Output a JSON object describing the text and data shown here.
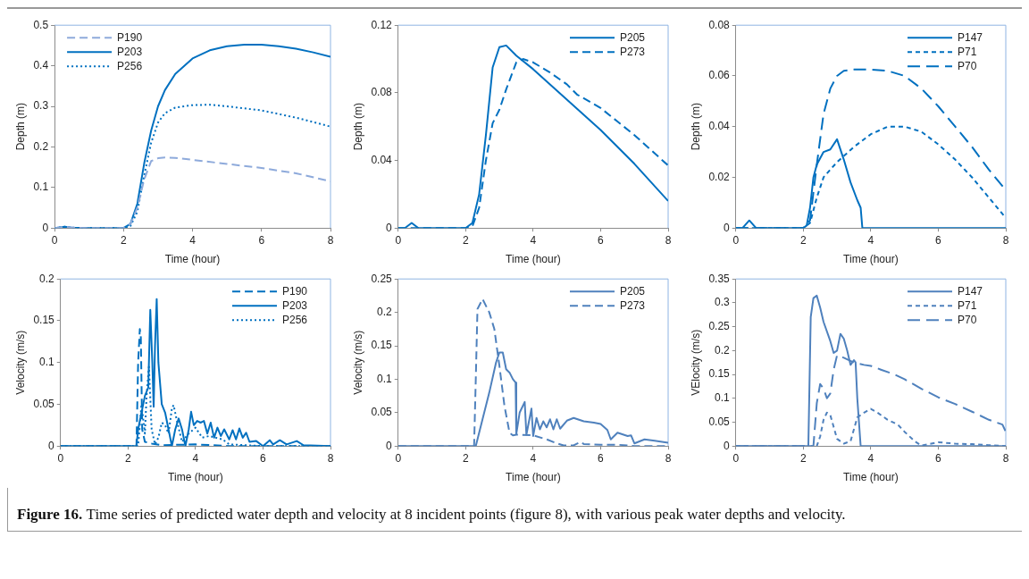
{
  "chart_data": [
    {
      "type": "line",
      "xlabel": "Time (hour)",
      "ylabel": "Depth (m)",
      "xlim": [
        0,
        8
      ],
      "xticks": [
        0,
        2,
        4,
        6,
        8
      ],
      "ylim": [
        0,
        0.5
      ],
      "yticks": [
        0,
        0.1,
        0.2,
        0.3,
        0.4,
        0.5
      ],
      "legend": "top left",
      "series": [
        {
          "name": "P190",
          "color": "#8eaadb",
          "line_style": "dashed",
          "x": [
            0,
            0.3,
            0.5,
            1,
            2,
            2.2,
            2.4,
            2.6,
            2.8,
            3,
            3.2,
            3.5,
            4,
            5,
            6,
            7,
            8
          ],
          "values": [
            0,
            0.003,
            0.001,
            0,
            0,
            0.01,
            0.05,
            0.12,
            0.165,
            0.172,
            0.174,
            0.173,
            0.168,
            0.158,
            0.148,
            0.135,
            0.115
          ]
        },
        {
          "name": "P203",
          "color": "#0070c0",
          "line_style": "solid",
          "x": [
            0,
            0.3,
            0.5,
            1,
            2,
            2.2,
            2.4,
            2.6,
            2.8,
            3,
            3.2,
            3.5,
            4,
            4.5,
            5,
            5.5,
            6,
            6.5,
            7,
            7.5,
            8
          ],
          "values": [
            0,
            0.003,
            0.001,
            0,
            0,
            0.01,
            0.06,
            0.16,
            0.24,
            0.3,
            0.34,
            0.38,
            0.418,
            0.438,
            0.448,
            0.452,
            0.452,
            0.448,
            0.442,
            0.433,
            0.422
          ]
        },
        {
          "name": "P256",
          "color": "#0070c0",
          "line_style": "dotted",
          "x": [
            0,
            0.3,
            0.5,
            1,
            2,
            2.2,
            2.4,
            2.6,
            2.8,
            3,
            3.2,
            3.5,
            4,
            4.5,
            5,
            6,
            7,
            8
          ],
          "values": [
            0,
            0.003,
            0.001,
            0,
            0,
            0.005,
            0.04,
            0.13,
            0.21,
            0.26,
            0.283,
            0.297,
            0.303,
            0.304,
            0.3,
            0.29,
            0.272,
            0.25
          ]
        }
      ]
    },
    {
      "type": "line",
      "xlabel": "Time (hour)",
      "ylabel": "Depth (m)",
      "xlim": [
        0,
        8
      ],
      "xticks": [
        0,
        2,
        4,
        6,
        8
      ],
      "ylim": [
        0,
        0.12
      ],
      "yticks": [
        0,
        0.04,
        0.08,
        0.12
      ],
      "legend": "top right",
      "series": [
        {
          "name": "P205",
          "color": "#0070c0",
          "line_style": "solid",
          "x": [
            0,
            0.2,
            0.4,
            0.6,
            1,
            2,
            2.2,
            2.4,
            2.6,
            2.8,
            3,
            3.2,
            3.5,
            4,
            4.5,
            5,
            5.5,
            6,
            7,
            8
          ],
          "values": [
            0,
            0,
            0.003,
            0,
            0,
            0,
            0.003,
            0.02,
            0.055,
            0.095,
            0.107,
            0.108,
            0.102,
            0.094,
            0.085,
            0.076,
            0.067,
            0.058,
            0.038,
            0.016
          ]
        },
        {
          "name": "P273",
          "color": "#0070c0",
          "line_style": "dashed",
          "x": [
            0,
            2,
            2.2,
            2.4,
            2.6,
            2.8,
            3,
            3.2,
            3.5,
            3.7,
            4,
            4.5,
            5,
            5.3,
            6,
            6.5,
            7,
            7.5,
            8
          ],
          "values": [
            0,
            0,
            0.001,
            0.012,
            0.04,
            0.062,
            0.07,
            0.082,
            0.098,
            0.1,
            0.098,
            0.092,
            0.085,
            0.079,
            0.071,
            0.063,
            0.055,
            0.046,
            0.037
          ]
        }
      ]
    },
    {
      "type": "line",
      "xlabel": "Time (hour)",
      "ylabel": "Depth (m)",
      "xlim": [
        0,
        8
      ],
      "xticks": [
        0,
        2,
        4,
        6,
        8
      ],
      "ylim": [
        0,
        0.08
      ],
      "yticks": [
        0,
        0.02,
        0.04,
        0.06,
        0.08
      ],
      "legend": "top right",
      "series": [
        {
          "name": "P147",
          "color": "#0070c0",
          "line_style": "solid",
          "x": [
            0,
            0.2,
            0.4,
            0.6,
            1,
            2,
            2.1,
            2.2,
            2.3,
            2.4,
            2.6,
            2.8,
            3,
            3.2,
            3.4,
            3.6,
            3.7,
            3.75,
            4,
            8
          ],
          "values": [
            0,
            0,
            0.003,
            0,
            0,
            0,
            0.001,
            0.008,
            0.02,
            0.025,
            0.03,
            0.031,
            0.035,
            0.027,
            0.018,
            0.011,
            0.008,
            0,
            0,
            0
          ]
        },
        {
          "name": "P71",
          "color": "#0070c0",
          "line_style": "dashed",
          "x": [
            0,
            2,
            2.2,
            2.4,
            2.6,
            2.8,
            3,
            3.5,
            4,
            4.5,
            5,
            5.5,
            6,
            6.5,
            7,
            7.5,
            8
          ],
          "values": [
            0,
            0,
            0.002,
            0.012,
            0.02,
            0.023,
            0.026,
            0.032,
            0.037,
            0.04,
            0.04,
            0.038,
            0.033,
            0.027,
            0.02,
            0.012,
            0.004
          ]
        },
        {
          "name": "P70",
          "color": "#0070c0",
          "line_style": "dashed",
          "x": [
            0,
            2,
            2.2,
            2.4,
            2.6,
            2.8,
            3,
            3.2,
            3.5,
            4,
            4.5,
            5,
            5.5,
            6,
            6.5,
            7,
            7.5,
            8
          ],
          "values": [
            0,
            0,
            0.003,
            0.025,
            0.045,
            0.055,
            0.06,
            0.062,
            0.0625,
            0.0625,
            0.062,
            0.06,
            0.055,
            0.048,
            0.04,
            0.032,
            0.023,
            0.015
          ]
        }
      ]
    },
    {
      "type": "line",
      "xlabel": "Time (hour)",
      "ylabel": "Velocity (m/s)",
      "xlim": [
        0,
        8
      ],
      "xticks": [
        0,
        2,
        4,
        6,
        8
      ],
      "ylim": [
        0,
        0.2
      ],
      "yticks": [
        0,
        0.05,
        0.1,
        0.15,
        0.2
      ],
      "legend": "top right",
      "series": [
        {
          "name": "P190",
          "color": "#0070c0",
          "line_style": "dashed",
          "x": [
            0,
            2.25,
            2.3,
            2.35,
            2.38,
            2.42,
            2.5,
            2.7,
            3,
            4,
            5,
            8
          ],
          "values": [
            0,
            0,
            0.1,
            0.14,
            0.13,
            0.02,
            0.005,
            0.003,
            0.001,
            0.002,
            0,
            0
          ]
        },
        {
          "name": "P203",
          "color": "#0070c0",
          "line_style": "solid",
          "x": [
            0,
            2.25,
            2.3,
            2.4,
            2.5,
            2.6,
            2.66,
            2.72,
            2.76,
            2.8,
            2.85,
            2.9,
            3,
            3.1,
            3.2,
            3.3,
            3.4,
            3.5,
            3.6,
            3.7,
            3.8,
            3.87,
            3.95,
            4.05,
            4.15,
            4.25,
            4.35,
            4.45,
            4.55,
            4.65,
            4.75,
            4.85,
            5,
            5.1,
            5.2,
            5.3,
            5.4,
            5.5,
            5.6,
            5.8,
            6,
            6.2,
            6.3,
            6.5,
            6.7,
            7,
            7.2,
            8
          ],
          "values": [
            0,
            0,
            0.02,
            0.04,
            0.06,
            0.07,
            0.163,
            0.1,
            0.047,
            0.12,
            0.176,
            0.1,
            0.05,
            0.04,
            0.02,
            0,
            0.02,
            0.033,
            0.02,
            0,
            0.02,
            0.041,
            0.025,
            0.03,
            0.028,
            0.03,
            0.015,
            0.028,
            0.01,
            0.022,
            0.012,
            0.02,
            0.008,
            0.019,
            0.008,
            0.021,
            0.01,
            0.016,
            0.005,
            0.006,
            0,
            0.007,
            0.002,
            0.007,
            0.002,
            0.006,
            0.001,
            0
          ]
        },
        {
          "name": "P256",
          "color": "#0070c0",
          "line_style": "dotted",
          "x": [
            0,
            2.3,
            2.4,
            2.5,
            2.55,
            2.62,
            2.7,
            2.8,
            2.9,
            3,
            3.1,
            3.2,
            3.3,
            3.35,
            3.45,
            3.6,
            3.8,
            4,
            4.2,
            4.4,
            4.6,
            4.8,
            5,
            5.5,
            6,
            8
          ],
          "values": [
            0,
            0,
            0.05,
            0.015,
            0.06,
            0.095,
            0.02,
            0.002,
            0.01,
            0.028,
            0.025,
            0.015,
            0.045,
            0.049,
            0.03,
            0.005,
            0.015,
            0.022,
            0.01,
            0.012,
            0.01,
            0.008,
            0.002,
            0.001,
            0,
            0
          ]
        }
      ]
    },
    {
      "type": "line",
      "xlabel": "Time (hour)",
      "ylabel": "Velocity (m/s)",
      "xlim": [
        0,
        8
      ],
      "xticks": [
        0,
        2,
        4,
        6,
        8
      ],
      "ylim": [
        0,
        0.25
      ],
      "yticks": [
        0,
        0.05,
        0.1,
        0.15,
        0.2,
        0.25
      ],
      "legend": "top right",
      "series": [
        {
          "name": "P205",
          "color": "#4f81bd",
          "line_style": "solid",
          "x": [
            0,
            2.3,
            2.5,
            2.7,
            2.9,
            3,
            3.1,
            3.2,
            3.3,
            3.4,
            3.48,
            3.5,
            3.6,
            3.75,
            3.8,
            3.95,
            4,
            4.1,
            4.2,
            4.3,
            4.4,
            4.5,
            4.6,
            4.7,
            4.8,
            5,
            5.2,
            5.5,
            5.8,
            6,
            6.2,
            6.3,
            6.5,
            6.8,
            6.9,
            7,
            7.3,
            7.6,
            8
          ],
          "values": [
            0,
            0,
            0.04,
            0.08,
            0.125,
            0.14,
            0.14,
            0.115,
            0.11,
            0.1,
            0.095,
            0.018,
            0.05,
            0.066,
            0.017,
            0.056,
            0.015,
            0.042,
            0.025,
            0.037,
            0.028,
            0.04,
            0.025,
            0.04,
            0.026,
            0.038,
            0.042,
            0.037,
            0.035,
            0.033,
            0.024,
            0.01,
            0.02,
            0.015,
            0.016,
            0.004,
            0.01,
            0.008,
            0.005
          ]
        },
        {
          "name": "P273",
          "color": "#4f81bd",
          "line_style": "dashed",
          "x": [
            0,
            2.25,
            2.3,
            2.35,
            2.5,
            2.7,
            2.85,
            3,
            3.15,
            3.3,
            3.4,
            3.5,
            4,
            4.4,
            4.7,
            4.9,
            5.2,
            5.4,
            5.5,
            6,
            6.5,
            7,
            8
          ],
          "values": [
            0,
            0,
            0.1,
            0.205,
            0.22,
            0.2,
            0.175,
            0.12,
            0.06,
            0.02,
            0.016,
            0.017,
            0.016,
            0.01,
            0.004,
            0.001,
            0.001,
            0.006,
            0.003,
            0.002,
            0.002,
            0,
            0
          ]
        }
      ]
    },
    {
      "type": "line",
      "xlabel": "Time (hour)",
      "ylabel": "VElocity (m/s)",
      "xlim": [
        0,
        8
      ],
      "xticks": [
        0,
        2,
        4,
        6,
        8
      ],
      "ylim": [
        0,
        0.35
      ],
      "yticks": [
        0,
        0.05,
        0.1,
        0.15,
        0.2,
        0.25,
        0.3,
        0.35
      ],
      "legend": "top right",
      "series": [
        {
          "name": "P147",
          "color": "#4f81bd",
          "line_style": "solid",
          "x": [
            0,
            2.15,
            2.22,
            2.3,
            2.4,
            2.5,
            2.6,
            2.8,
            2.9,
            3,
            3.1,
            3.2,
            3.3,
            3.4,
            3.5,
            3.55,
            3.6,
            3.7,
            8
          ],
          "values": [
            0,
            0,
            0.27,
            0.31,
            0.315,
            0.29,
            0.26,
            0.22,
            0.195,
            0.2,
            0.235,
            0.225,
            0.2,
            0.17,
            0.18,
            0.175,
            0.1,
            0,
            0
          ]
        },
        {
          "name": "P71",
          "color": "#4f81bd",
          "line_style": "dashed",
          "x": [
            0,
            2.4,
            2.5,
            2.6,
            2.7,
            2.8,
            2.9,
            3,
            3.2,
            3.4,
            3.6,
            3.8,
            4,
            4.2,
            4.5,
            4.8,
            5,
            5.3,
            5.5,
            6,
            6.5,
            7,
            7.5,
            8
          ],
          "values": [
            0,
            0,
            0.02,
            0.055,
            0.07,
            0.065,
            0.04,
            0.015,
            0.005,
            0.01,
            0.06,
            0.07,
            0.078,
            0.07,
            0.055,
            0.045,
            0.03,
            0.01,
            0.001,
            0.008,
            0.005,
            0.004,
            0.002,
            0
          ]
        },
        {
          "name": "P70",
          "color": "#4f81bd",
          "line_style": "dashed",
          "x": [
            0,
            2.3,
            2.4,
            2.5,
            2.6,
            2.7,
            2.8,
            2.9,
            3,
            3.2,
            3.5,
            3.8,
            4,
            4.3,
            4.7,
            5,
            5.5,
            6,
            6.5,
            7,
            7.5,
            7.9,
            8
          ],
          "values": [
            0,
            0,
            0.09,
            0.13,
            0.12,
            0.1,
            0.11,
            0.16,
            0.19,
            0.185,
            0.175,
            0.17,
            0.168,
            0.16,
            0.15,
            0.14,
            0.12,
            0.102,
            0.088,
            0.072,
            0.055,
            0.045,
            0.03
          ]
        }
      ]
    },
    {
      "type": "other",
      "annotations": [
        "Figure 16.",
        "Time series of predicted water depth and velocity at 8 incident points (figure 8), with various peak water depths and velocity."
      ]
    }
  ]
}
